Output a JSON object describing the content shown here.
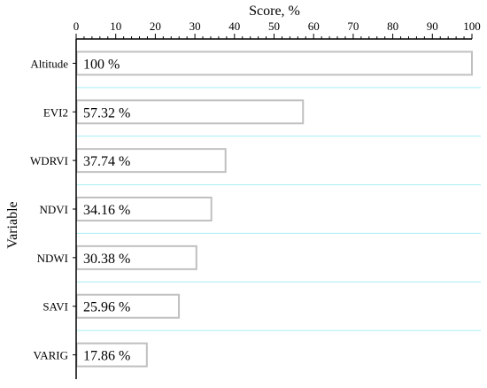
{
  "chart_data": {
    "type": "bar",
    "orientation": "horizontal",
    "title": "",
    "xlabel": "Score, %",
    "ylabel": "Variable",
    "xaxis_position": "top",
    "xlim": [
      0,
      100
    ],
    "xticks": [
      "0",
      "10",
      "20",
      "30",
      "40",
      "50",
      "60",
      "70",
      "80",
      "90",
      "100"
    ],
    "categories": [
      "Altitude",
      "EVI2",
      "WDRVI",
      "NDVI",
      "NDWI",
      "SAVI",
      "VARIG"
    ],
    "values": [
      100,
      57.32,
      37.74,
      34.16,
      30.38,
      25.96,
      17.86
    ],
    "data_labels": [
      "100 %",
      "57.32 %",
      "37.74 %",
      "34.16 %",
      "30.38 %",
      "25.96 %",
      "17.86 %"
    ],
    "grid": "horizontal separators",
    "legend": "none",
    "colors": {
      "bar_fill": "#ffffff",
      "bar_stroke": "#c0c0c0",
      "grid": "#a8eef5",
      "axis": "#000000",
      "text": "#000000"
    }
  }
}
